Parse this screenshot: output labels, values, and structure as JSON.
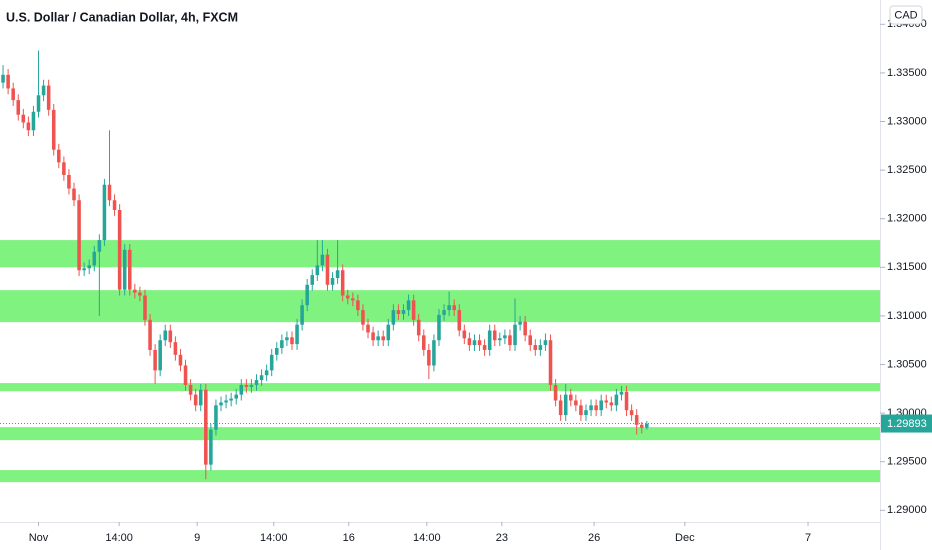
{
  "chart_data": {
    "type": "candlestick",
    "title": "U.S. Dollar / Canadian Dollar, 4h, FXCM",
    "currency": "CAD",
    "up_color": "#26a69a",
    "down_color": "#ef5350",
    "zone_color": "#80f280",
    "zones": [
      {
        "low": 1.315,
        "high": 1.3178
      },
      {
        "low": 1.30936,
        "high": 1.31265
      },
      {
        "low": 1.30226,
        "high": 1.30309
      },
      {
        "low": 1.29722,
        "high": 1.29856
      },
      {
        "low": 1.2929,
        "high": 1.29414
      }
    ],
    "last_price": 1.29893,
    "xlim": [
      -0.6,
      173
    ],
    "xticks": [
      {
        "value": 7,
        "label": "Nov"
      },
      {
        "value": 22.9,
        "label": "14:00"
      },
      {
        "value": 38.3,
        "label": "9"
      },
      {
        "value": 53.4,
        "label": "14:00"
      },
      {
        "value": 68.2,
        "label": "16"
      },
      {
        "value": 83.6,
        "label": "14:00"
      },
      {
        "value": 98.4,
        "label": "23"
      },
      {
        "value": 116.6,
        "label": "26"
      },
      {
        "value": 134.5,
        "label": "Dec"
      },
      {
        "value": 158.8,
        "label": "7"
      }
    ],
    "ylim": [
      1.2888,
      1.3425
    ],
    "yticks": [
      {
        "value": 1.29,
        "label": "1.29000"
      },
      {
        "value": 1.295,
        "label": "1.29500"
      },
      {
        "value": 1.3,
        "label": "1.30000"
      },
      {
        "value": 1.305,
        "label": "1.30500"
      },
      {
        "value": 1.31,
        "label": "1.31000"
      },
      {
        "value": 1.315,
        "label": "1.31500"
      },
      {
        "value": 1.32,
        "label": "1.32000"
      },
      {
        "value": 1.325,
        "label": "1.32500"
      },
      {
        "value": 1.33,
        "label": "1.33000"
      },
      {
        "value": 1.335,
        "label": "1.33500"
      },
      {
        "value": 1.34,
        "label": "1.34000"
      }
    ],
    "open": [
      1.334,
      1.3348,
      1.3334,
      1.3322,
      1.3307,
      1.3299,
      1.3291,
      1.331,
      1.3327,
      1.3337,
      1.3312,
      1.3271,
      1.3258,
      1.3245,
      1.3231,
      1.3219,
      1.3147,
      1.3149,
      1.3152,
      1.3166,
      1.3178,
      1.3235,
      1.3219,
      1.3209,
      1.3127,
      1.3168,
      1.3127,
      1.3124,
      1.3121,
      1.3096,
      1.3065,
      1.3044,
      1.3075,
      1.3085,
      1.3073,
      1.306,
      1.3049,
      1.3029,
      1.3019,
      1.3008,
      1.3024,
      1.2947,
      1.2983,
      1.3008,
      1.3011,
      1.3013,
      1.3015,
      1.3019,
      1.3029,
      1.3027,
      1.3029,
      1.3034,
      1.3039,
      1.3044,
      1.306,
      1.3067,
      1.3075,
      1.3078,
      1.3071,
      1.3091,
      1.3111,
      1.3132,
      1.3142,
      1.3152,
      1.3163,
      1.3132,
      1.3139,
      1.3147,
      1.3121,
      1.3118,
      1.3116,
      1.3106,
      1.3091,
      1.3083,
      1.3075,
      1.3079,
      1.3075,
      1.3091,
      1.3106,
      1.3102,
      1.3106,
      1.3116,
      1.3096,
      1.308,
      1.3065,
      1.3049,
      1.3075,
      1.3101,
      1.3106,
      1.3111,
      1.3106,
      1.3085,
      1.3077,
      1.307,
      1.3075,
      1.307,
      1.3065,
      1.3085,
      1.3075,
      1.3077,
      1.308,
      1.307,
      1.3091,
      1.3094,
      1.308,
      1.307,
      1.3065,
      1.307,
      1.3075,
      1.3029,
      1.3013,
      1.2998,
      1.3019,
      1.3013,
      1.3008,
      1.2998,
      1.3003,
      1.3008,
      1.3003,
      1.3013,
      1.3011,
      1.3008,
      1.3019,
      1.3022,
      1.3003,
      1.2998,
      1.2988,
      1.2985
    ],
    "high": [
      1.3358,
      1.3354,
      1.334,
      1.3328,
      1.3313,
      1.3305,
      1.3316,
      1.3373,
      1.3343,
      1.3343,
      1.3318,
      1.3277,
      1.3264,
      1.3251,
      1.3237,
      1.3225,
      1.3155,
      1.3158,
      1.3172,
      1.3184,
      1.3241,
      1.3291,
      1.3225,
      1.3215,
      1.3174,
      1.3174,
      1.3133,
      1.313,
      1.3127,
      1.3102,
      1.3071,
      1.3081,
      1.3091,
      1.3091,
      1.3079,
      1.3066,
      1.3055,
      1.3035,
      1.3025,
      1.303,
      1.303,
      1.2989,
      1.3014,
      1.3017,
      1.3019,
      1.3021,
      1.3025,
      1.3035,
      1.3035,
      1.3035,
      1.304,
      1.3045,
      1.305,
      1.3066,
      1.3073,
      1.3081,
      1.3084,
      1.3084,
      1.3097,
      1.3117,
      1.3138,
      1.3148,
      1.3178,
      1.3178,
      1.3169,
      1.3145,
      1.3178,
      1.3153,
      1.3127,
      1.3124,
      1.3122,
      1.3112,
      1.3097,
      1.3089,
      1.3085,
      1.3085,
      1.3097,
      1.3112,
      1.3112,
      1.3112,
      1.3122,
      1.3122,
      1.3102,
      1.3086,
      1.3071,
      1.3081,
      1.3107,
      1.3112,
      1.3125,
      1.3117,
      1.3112,
      1.3091,
      1.3083,
      1.3081,
      1.3081,
      1.3076,
      1.3091,
      1.3091,
      1.3083,
      1.3086,
      1.3086,
      1.3118,
      1.31,
      1.31,
      1.3086,
      1.3076,
      1.3076,
      1.3082,
      1.3081,
      1.3035,
      1.3019,
      1.303,
      1.3025,
      1.3019,
      1.3014,
      1.3009,
      1.3014,
      1.3014,
      1.3019,
      1.3019,
      1.3017,
      1.3025,
      1.3028,
      1.3028,
      1.3009,
      1.3004,
      1.2991,
      1.2992
    ],
    "low": [
      1.3334,
      1.3328,
      1.3316,
      1.3301,
      1.3293,
      1.3285,
      1.3285,
      1.3304,
      1.3321,
      1.3306,
      1.3265,
      1.3252,
      1.3239,
      1.3225,
      1.3213,
      1.3141,
      1.3141,
      1.3143,
      1.3146,
      1.31,
      1.3172,
      1.3213,
      1.3203,
      1.3121,
      1.3121,
      1.3121,
      1.3118,
      1.3115,
      1.309,
      1.3059,
      1.303,
      1.3038,
      1.3069,
      1.3067,
      1.3054,
      1.3043,
      1.3023,
      1.3013,
      1.3002,
      1.3002,
      1.2932,
      1.2941,
      1.2977,
      1.3002,
      1.3005,
      1.3007,
      1.3009,
      1.3013,
      1.3021,
      1.3021,
      1.3023,
      1.3028,
      1.3033,
      1.3038,
      1.3054,
      1.3061,
      1.3069,
      1.3065,
      1.3065,
      1.3085,
      1.3105,
      1.3126,
      1.3136,
      1.3146,
      1.3126,
      1.3126,
      1.3133,
      1.3115,
      1.3112,
      1.311,
      1.31,
      1.3085,
      1.3077,
      1.3069,
      1.3069,
      1.3069,
      1.3069,
      1.3085,
      1.3096,
      1.3096,
      1.31,
      1.309,
      1.3074,
      1.3059,
      1.3035,
      1.3043,
      1.3069,
      1.3095,
      1.31,
      1.31,
      1.3079,
      1.3071,
      1.3064,
      1.3064,
      1.3064,
      1.3059,
      1.3059,
      1.3069,
      1.3069,
      1.3071,
      1.3064,
      1.3064,
      1.3085,
      1.3074,
      1.3064,
      1.3059,
      1.3059,
      1.3064,
      1.3023,
      1.3007,
      1.2992,
      1.2992,
      1.3007,
      1.3002,
      1.2992,
      1.2992,
      1.2997,
      1.2997,
      1.2997,
      1.3005,
      1.3002,
      1.3002,
      1.3013,
      1.2997,
      1.2992,
      1.2978,
      1.2979,
      1.2983
    ],
    "close": [
      1.3348,
      1.3334,
      1.3322,
      1.3307,
      1.3299,
      1.3291,
      1.331,
      1.3327,
      1.3337,
      1.3312,
      1.3271,
      1.3258,
      1.3245,
      1.3231,
      1.3219,
      1.3147,
      1.3149,
      1.3152,
      1.3166,
      1.3178,
      1.3235,
      1.3219,
      1.3209,
      1.3127,
      1.3168,
      1.3127,
      1.3124,
      1.3121,
      1.3096,
      1.3065,
      1.3044,
      1.3075,
      1.3085,
      1.3073,
      1.306,
      1.3049,
      1.3029,
      1.3019,
      1.3008,
      1.3024,
      1.2947,
      1.2983,
      1.3008,
      1.3011,
      1.3013,
      1.3015,
      1.3019,
      1.3029,
      1.3027,
      1.3029,
      1.3034,
      1.3039,
      1.3044,
      1.306,
      1.3067,
      1.3075,
      1.3078,
      1.3071,
      1.3091,
      1.3111,
      1.3132,
      1.3142,
      1.3152,
      1.3163,
      1.3132,
      1.3139,
      1.3147,
      1.3121,
      1.3118,
      1.3116,
      1.3106,
      1.3091,
      1.3083,
      1.3075,
      1.3079,
      1.3075,
      1.3091,
      1.3106,
      1.3102,
      1.3106,
      1.3116,
      1.3096,
      1.308,
      1.3065,
      1.3049,
      1.3075,
      1.3101,
      1.3106,
      1.3111,
      1.3106,
      1.3085,
      1.3077,
      1.307,
      1.3075,
      1.307,
      1.3065,
      1.3085,
      1.3075,
      1.3077,
      1.308,
      1.307,
      1.3091,
      1.3094,
      1.308,
      1.307,
      1.3065,
      1.307,
      1.3075,
      1.3029,
      1.3013,
      1.2998,
      1.3019,
      1.3013,
      1.3008,
      1.2998,
      1.3003,
      1.3008,
      1.3003,
      1.3013,
      1.3011,
      1.3008,
      1.3019,
      1.3022,
      1.3003,
      1.2998,
      1.2988,
      1.2985,
      1.2989
    ]
  }
}
